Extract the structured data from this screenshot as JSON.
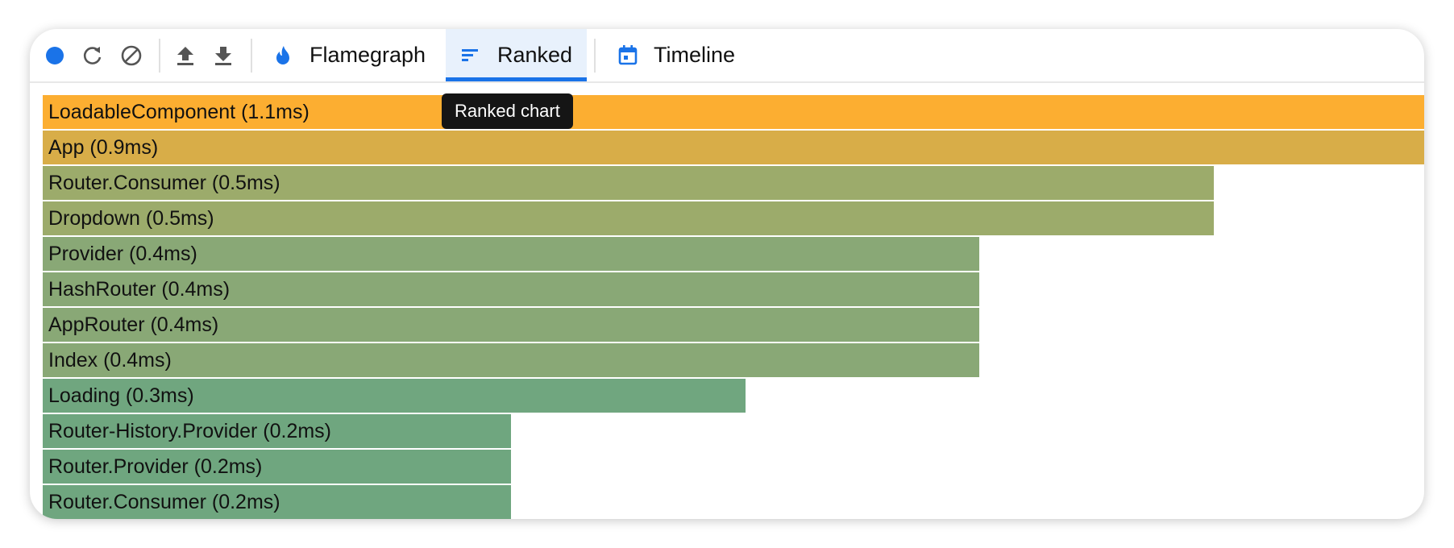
{
  "toolbar": {
    "tabs": [
      "Flamegraph",
      "Ranked",
      "Timeline"
    ],
    "active_tab": 1
  },
  "tooltip": "Ranked chart",
  "ranked": {
    "rows": [
      {
        "label": "LoadableComponent (1.1ms)",
        "value": 1.1,
        "color": "#fcae31"
      },
      {
        "label": "App (0.9ms)",
        "value": 0.9,
        "color": "#d8ad48"
      },
      {
        "label": "Router.Consumer (0.5ms)",
        "value": 0.5,
        "color": "#9cab6b"
      },
      {
        "label": "Dropdown (0.5ms)",
        "value": 0.5,
        "color": "#9cab6b"
      },
      {
        "label": "Provider (0.4ms)",
        "value": 0.4,
        "color": "#89a876"
      },
      {
        "label": "HashRouter (0.4ms)",
        "value": 0.4,
        "color": "#89a876"
      },
      {
        "label": "AppRouter (0.4ms)",
        "value": 0.4,
        "color": "#89a876"
      },
      {
        "label": "Index (0.4ms)",
        "value": 0.4,
        "color": "#89a876"
      },
      {
        "label": "Loading (0.3ms)",
        "value": 0.3,
        "color": "#70a67f"
      },
      {
        "label": "Router-History.Provider (0.2ms)",
        "value": 0.2,
        "color": "#6fa67f"
      },
      {
        "label": "Router.Provider (0.2ms)",
        "value": 0.2,
        "color": "#6fa67f"
      },
      {
        "label": "Router.Consumer (0.2ms)",
        "value": 0.2,
        "color": "#6fa67f"
      }
    ]
  }
}
